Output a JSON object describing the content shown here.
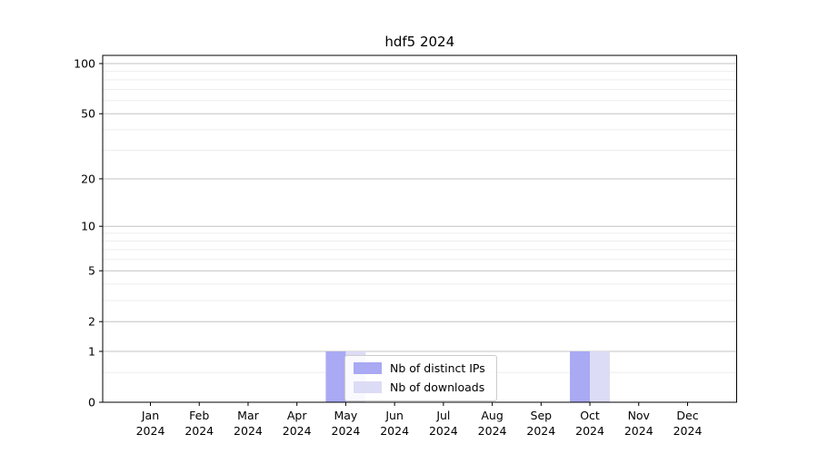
{
  "title": "hdf5 2024",
  "chart_data": {
    "type": "bar",
    "title": "hdf5 2024",
    "categories": [
      "Jan 2024",
      "Feb 2024",
      "Mar 2024",
      "Apr 2024",
      "May 2024",
      "Jun 2024",
      "Jul 2024",
      "Aug 2024",
      "Sep 2024",
      "Oct 2024",
      "Nov 2024",
      "Dec 2024"
    ],
    "series": [
      {
        "name": "Nb of distinct IPs",
        "color": "#a9a9f4",
        "values": [
          0,
          0,
          0,
          0,
          1,
          0,
          0,
          0,
          0,
          1,
          0,
          0
        ]
      },
      {
        "name": "Nb of downloads",
        "color": "#dcdcf6",
        "values": [
          0,
          0,
          0,
          0,
          1,
          0,
          0,
          0,
          0,
          1,
          0,
          0
        ]
      }
    ],
    "xlabel": "",
    "ylabel": "",
    "yscale": "log1p",
    "ylim": [
      0,
      112
    ],
    "y_major_ticks": [
      0,
      1,
      2,
      5,
      10,
      20,
      50,
      100
    ],
    "y_minor_ticks": [
      0.5,
      3,
      4,
      6,
      7,
      8,
      9,
      30,
      40,
      60,
      70,
      80,
      90
    ],
    "grid": true,
    "legend_position": "lower center",
    "colors": {
      "axis": "#000000",
      "major_grid": "#c3c3c3",
      "minor_grid": "#ededed",
      "text": "#000000",
      "background": "#ffffff"
    }
  }
}
